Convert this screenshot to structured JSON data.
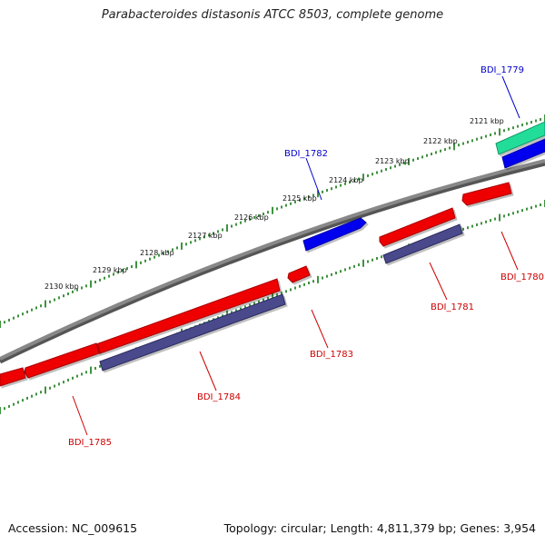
{
  "title": "Parabacteroides distasonis ATCC 8503, complete genome",
  "footer": {
    "accession": "Accession: NC_009615",
    "summary": "Topology: circular; Length: 4,811,379 bp; Genes: 3,954"
  },
  "colors": {
    "forward_gene": "#0000ee",
    "reverse_gene": "#ee0000",
    "rna_gene": "#22dd99",
    "protein_feature": "#4a4a8c",
    "backbone": "#888888",
    "tick": "#117711",
    "forward_label": "#0000cc",
    "reverse_label": "#cc0000"
  },
  "scale": {
    "unit": "kbp",
    "labels": [
      "2121 kbp",
      "2122 kbp",
      "2123 kbp",
      "2124 kbp",
      "2125 kbp",
      "2126 kbp",
      "2127 kbp",
      "2128 kbp",
      "2129 kbp",
      "2130 kbp"
    ]
  },
  "genes": [
    {
      "id": "BDI_1779",
      "strand": "forward",
      "type": "rna"
    },
    {
      "id": "BDI_1782",
      "strand": "forward",
      "type": "cds"
    },
    {
      "id": "BDI_1780",
      "strand": "reverse",
      "type": "cds"
    },
    {
      "id": "BDI_1781",
      "strand": "reverse",
      "type": "cds"
    },
    {
      "id": "BDI_1783",
      "strand": "reverse",
      "type": "cds"
    },
    {
      "id": "BDI_1784",
      "strand": "reverse",
      "type": "cds"
    },
    {
      "id": "BDI_1785",
      "strand": "reverse",
      "type": "cds"
    }
  ]
}
